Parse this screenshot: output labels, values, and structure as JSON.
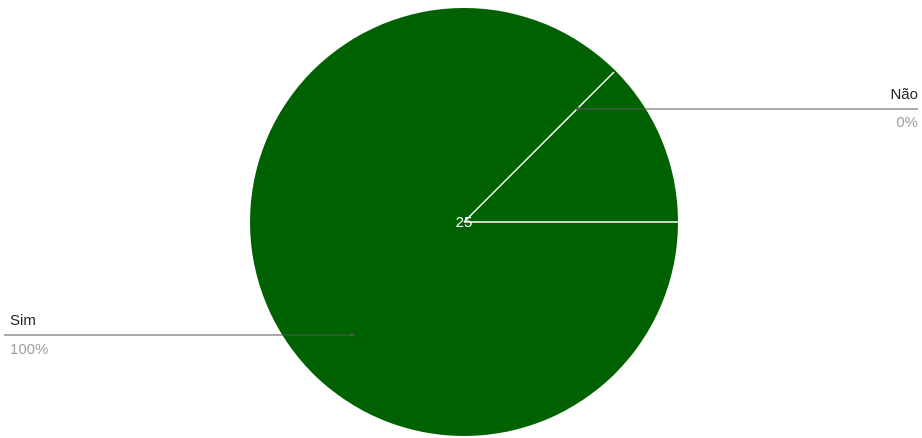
{
  "chart_data": {
    "type": "pie",
    "title": "",
    "slices": [
      {
        "label": "Sim",
        "percent_text": "100%",
        "value": 100,
        "color": "#006100"
      },
      {
        "label": "Não",
        "percent_text": "0%",
        "value": 0,
        "color": "#006100"
      }
    ],
    "center_value": "25",
    "separator_color": "#ffffff",
    "leader_color": "#555555"
  }
}
